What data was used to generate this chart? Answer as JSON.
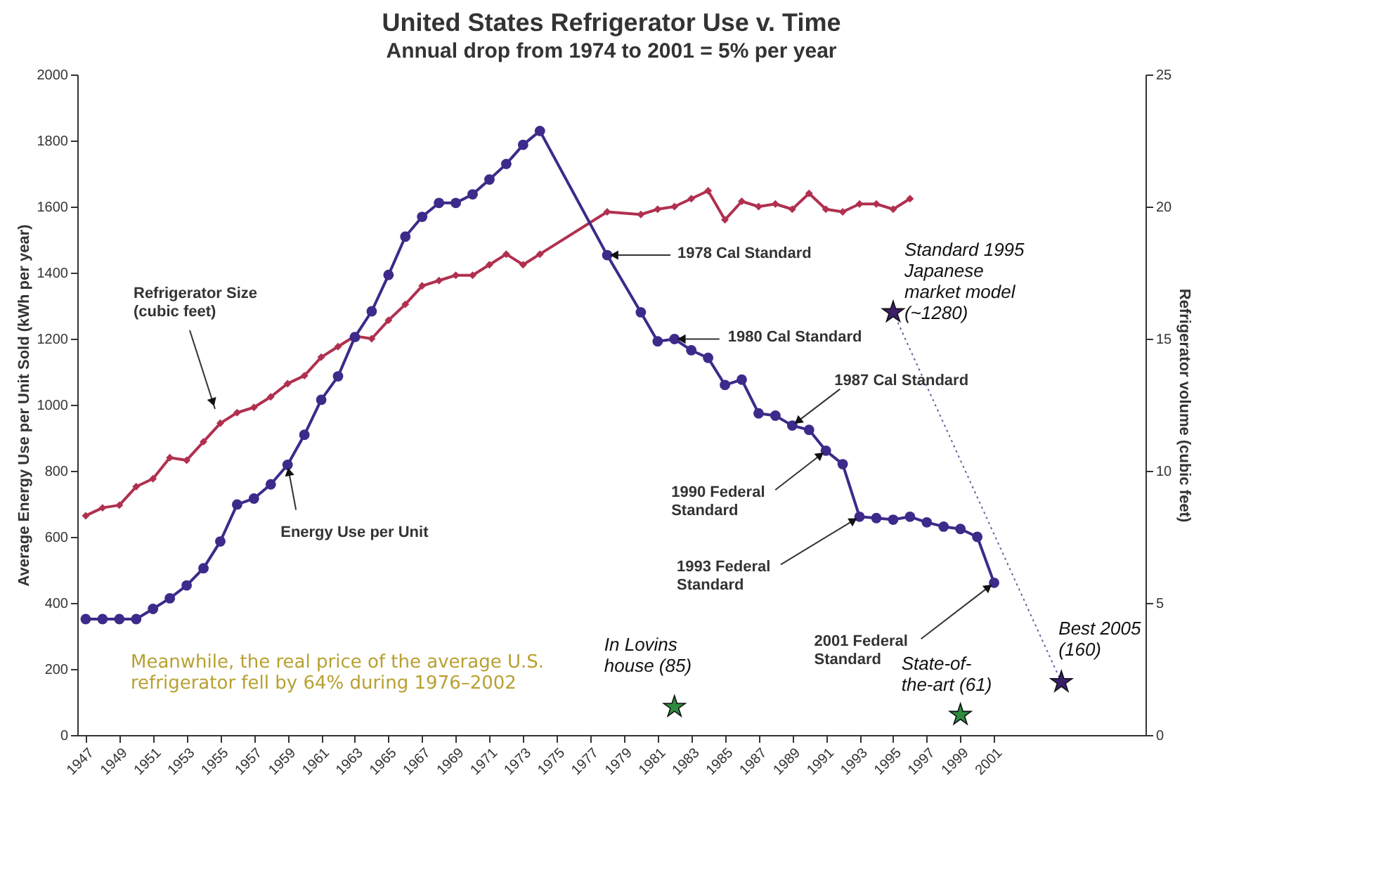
{
  "chart_data": {
    "type": "line",
    "title": "United States Refrigerator Use v. Time",
    "subtitle": "Annual drop from 1974 to 2001 = 5% per year",
    "ylabel": "Average Energy Use per Unit Sold (kWh per year)",
    "y2label": "Refrigerator volume (cubic feet)",
    "xlim": [
      1946.5,
      2010
    ],
    "xticks": [
      1947,
      1949,
      1951,
      1953,
      1955,
      1957,
      1959,
      1961,
      1963,
      1965,
      1967,
      1969,
      1971,
      1973,
      1975,
      1977,
      1979,
      1981,
      1983,
      1985,
      1987,
      1989,
      1991,
      1993,
      1995,
      1997,
      1999,
      2001
    ],
    "ylim": [
      0,
      2000
    ],
    "yticks": [
      0,
      200,
      400,
      600,
      800,
      1000,
      1200,
      1400,
      1600,
      1800,
      2000
    ],
    "y2lim": [
      0,
      25
    ],
    "y2ticks": [
      0,
      5,
      10,
      15,
      20,
      25
    ],
    "grid": false,
    "series": [
      {
        "color": "#3d2a8a",
        "marker": "circle",
        "line_style": "solid",
        "x": [
          1947,
          1948,
          1949,
          1950,
          1951,
          1952,
          1953,
          1954,
          1955,
          1956,
          1957,
          1958,
          1959,
          1960,
          1961,
          1962,
          1963,
          1964,
          1965,
          1966,
          1967,
          1968,
          1969,
          1970,
          1971,
          1972,
          1973,
          1974,
          1978,
          1980,
          1981,
          1982,
          1983,
          1984,
          1985,
          1986,
          1987,
          1988,
          1989,
          1990,
          1991,
          1992,
          1993,
          1994,
          1995,
          1996,
          1997,
          1998,
          1999,
          2000,
          2001
        ],
        "values": [
          351,
          351,
          351,
          351,
          382,
          414,
          453,
          505,
          586,
          698,
          716,
          759,
          818,
          909,
          1015,
          1086,
          1205,
          1283,
          1393,
          1509,
          1569,
          1611,
          1611,
          1637,
          1682,
          1729,
          1787,
          1829,
          1453,
          1280,
          1192,
          1199,
          1165,
          1142,
          1060,
          1076,
          974,
          967,
          937,
          924,
          861,
          820,
          661,
          657,
          652,
          661,
          644,
          631,
          624,
          600,
          461
        ]
      },
      {
        "axis": "y2",
        "color": "#b03050",
        "marker": "diamond",
        "line_style": "solid",
        "x": [
          1947,
          1948,
          1949,
          1950,
          1951,
          1952,
          1953,
          1954,
          1955,
          1956,
          1957,
          1958,
          1959,
          1960,
          1961,
          1962,
          1963,
          1964,
          1965,
          1966,
          1967,
          1968,
          1969,
          1970,
          1971,
          1972,
          1973,
          1974,
          1978,
          1980,
          1981,
          1982,
          1983,
          1984,
          1985,
          1986,
          1987,
          1988,
          1989,
          1990,
          1991,
          1992,
          1993,
          1994,
          1995,
          1996
        ],
        "values": [
          8.3,
          8.6,
          8.7,
          9.4,
          9.7,
          10.5,
          10.4,
          11.1,
          11.8,
          12.2,
          12.4,
          12.8,
          13.3,
          13.6,
          14.3,
          14.7,
          15.1,
          15.0,
          15.7,
          16.3,
          17.0,
          17.2,
          17.4,
          17.4,
          17.8,
          18.2,
          17.8,
          18.2,
          19.8,
          19.7,
          19.9,
          20.0,
          20.3,
          20.6,
          19.5,
          20.2,
          20.0,
          20.1,
          19.9,
          20.5,
          19.9,
          19.8,
          20.1,
          20.1,
          19.9,
          20.3
        ]
      },
      {
        "type": "line",
        "color": "#6a5fa0",
        "marker": "none",
        "line_style": "dotted",
        "x": [
          1995,
          2005
        ],
        "values": [
          1280,
          160
        ]
      },
      {
        "type": "scatter",
        "color": "#3b1e6b",
        "marker": "star",
        "x": [
          1995,
          2005
        ],
        "values": [
          1280,
          160
        ]
      },
      {
        "type": "scatter",
        "color": "#2e8b3e",
        "marker": "star",
        "x": [
          1982,
          1999
        ],
        "values": [
          85,
          61
        ]
      }
    ],
    "annotations": [
      "Refrigerator Size\n(cubic feet)",
      {
        "text": "Energy Use per Unit",
        "x": 1959,
        "y": 818
      },
      {
        "text": "1978 Cal Standard",
        "x": 1978,
        "y": 1453
      },
      {
        "text": "1980 Cal Standard",
        "x": 1982,
        "y": 1199
      },
      {
        "text": "1987 Cal Standard",
        "x": 1989,
        "y": 937
      },
      {
        "text": "1990 Federal\nStandard",
        "x": 1991,
        "y": 861
      },
      {
        "text": "1993 Federal\nStandard",
        "x": 1993,
        "y": 661
      },
      {
        "text": "2001 Federal\nStandard",
        "x": 2001,
        "y": 461
      },
      {
        "text": "In Lovins\nhouse (85)",
        "x": 1982,
        "y": 85
      },
      {
        "text": "Standard 1995\nJapanese\nmarket model\n(~1280)",
        "x": 1995,
        "y": 1280
      },
      {
        "text": "State-of-\nthe-art (61)",
        "x": 1999,
        "y": 61
      },
      {
        "text": "Best 2005\n(160)",
        "x": 2005,
        "y": 160
      },
      "Meanwhile, the real price of the average U.S.\nrefrigerator fell by 64% during 1976–2002"
    ]
  }
}
